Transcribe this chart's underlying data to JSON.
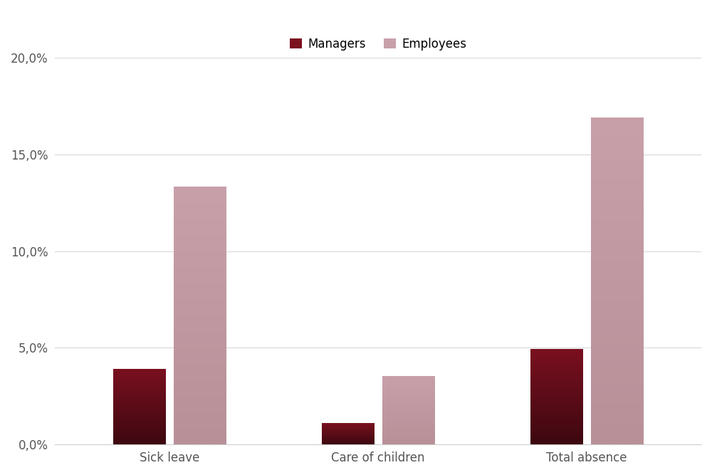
{
  "categories": [
    "Sick leave",
    "Care of children",
    "Total absence"
  ],
  "managers": [
    3.9,
    1.1,
    4.9
  ],
  "employees": [
    13.3,
    3.5,
    16.9
  ],
  "manager_color_top": "#7a1020",
  "manager_color_bottom": "#3d0810",
  "employee_color_top": "#c8a0aa",
  "employee_color_bottom": "#b89098",
  "yticks": [
    0.0,
    5.0,
    10.0,
    15.0,
    20.0
  ],
  "ytick_labels": [
    "0,0%",
    "5,0%",
    "10,0%",
    "15,0%",
    "20,0%"
  ],
  "legend_labels": [
    "Managers",
    "Employees"
  ],
  "legend_manager_color": "#7a1020",
  "legend_employee_color": "#c8a0aa",
  "background_color": "#ffffff",
  "bar_width": 0.25,
  "ylim": [
    0,
    20
  ],
  "grid_color": "#d8d8d8",
  "spine_color": "#d0d0d0"
}
